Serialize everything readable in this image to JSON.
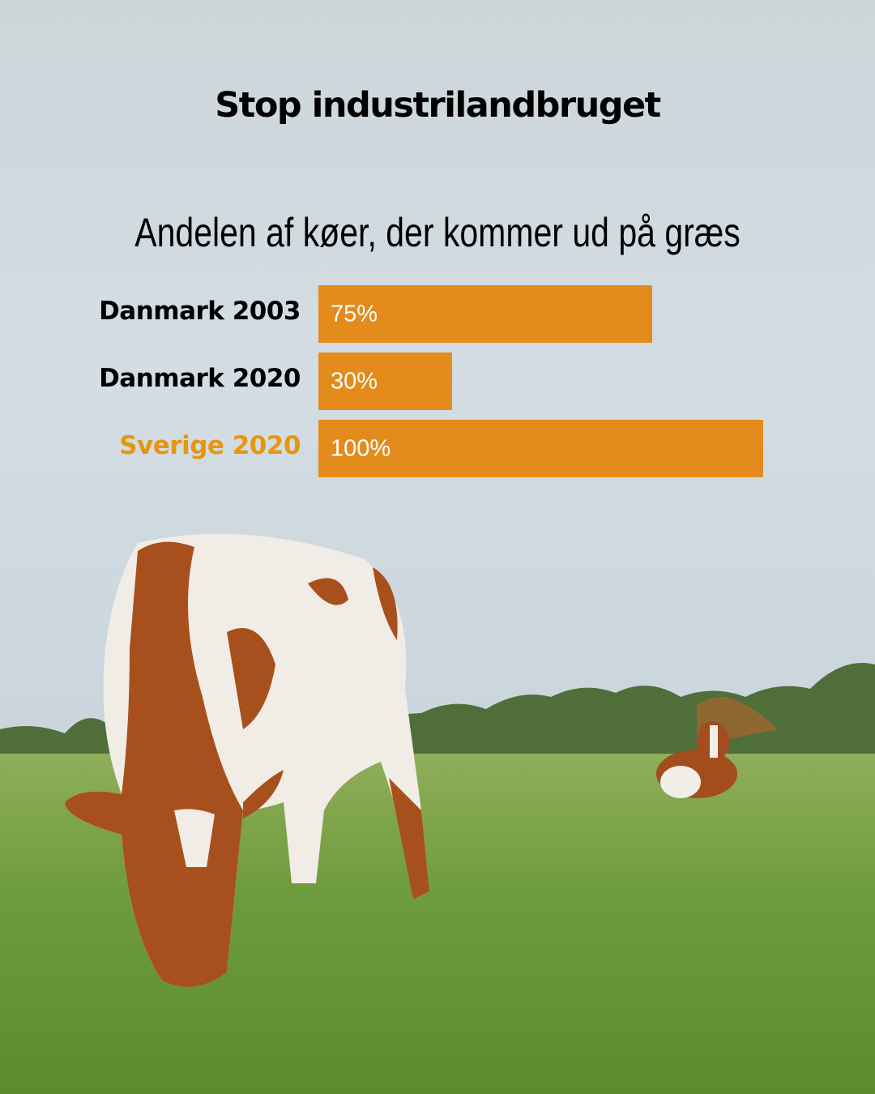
{
  "header": {
    "title": "Stop industrilandbruget"
  },
  "chart_data": {
    "type": "bar",
    "orientation": "horizontal",
    "title": "Andelen af køer, der kommer ud på græs",
    "categories": [
      "Danmark 2003",
      "Danmark 2020",
      "Sverige 2020"
    ],
    "values": [
      75,
      30,
      100
    ],
    "data_labels": [
      "75%",
      "30%",
      "100%"
    ],
    "xlim": [
      0,
      100
    ],
    "grid": false,
    "bar_color": "#E38B1B",
    "label_colors": [
      "#000000",
      "#000000",
      "#E8950F"
    ]
  }
}
